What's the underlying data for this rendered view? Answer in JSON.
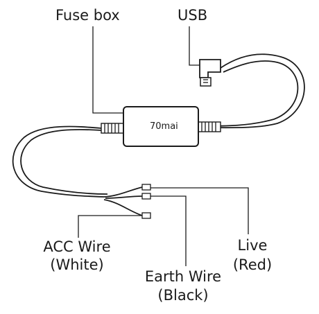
{
  "labels": {
    "fuse_box": "Fuse box",
    "usb": "USB",
    "brand": "70mai",
    "acc_wire": "ACC Wire",
    "acc_color": "(White)",
    "earth_wire": "Earth Wire",
    "earth_color": "(Black)",
    "live": "Live",
    "live_color": "(Red)"
  }
}
